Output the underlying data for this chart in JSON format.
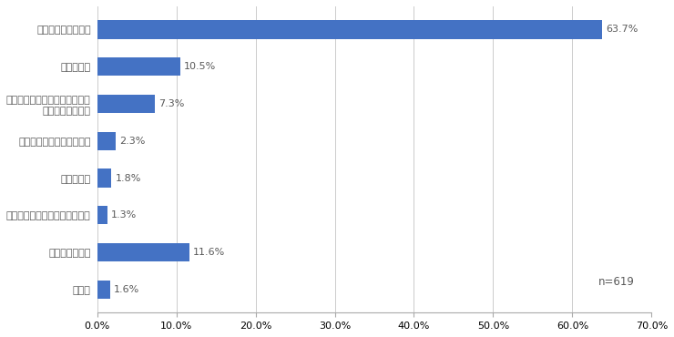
{
  "categories": [
    "新聞をとっていない",
    "関心がない",
    "新聞に折り込まれていることに\n気がつかなかった",
    "配布場所が分からなかった",
    "忙しかった",
    "新聞に折り込まれていなかった",
    "特に理由はない",
    "その他"
  ],
  "values": [
    63.7,
    10.5,
    7.3,
    2.3,
    1.8,
    1.3,
    11.6,
    1.6
  ],
  "bar_color": "#4472C4",
  "label_color": "#595959",
  "value_label_color": "#595959",
  "background_color": "#ffffff",
  "xlim": [
    0,
    70
  ],
  "xtick_vals": [
    0,
    10,
    20,
    30,
    40,
    50,
    60,
    70
  ],
  "n_label": "n=619",
  "value_labels": [
    "63.7%",
    "10.5%",
    "7.3%",
    "2.3%",
    "1.8%",
    "1.3%",
    "11.6%",
    "1.6%"
  ],
  "bar_height": 0.5,
  "figsize": [
    7.4,
    3.7
  ],
  "dpi": 100
}
